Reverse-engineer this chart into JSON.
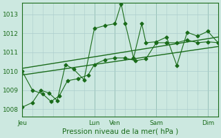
{
  "background_color": "#cce8e0",
  "grid_color": "#aacccc",
  "line_color": "#1a6b1a",
  "xlabel": "Pression niveau de la mer( hPa )",
  "yticks": [
    1008,
    1009,
    1010,
    1011,
    1012,
    1013
  ],
  "xtick_labels": [
    "Jeu",
    "Lun",
    "Ven",
    "Sam",
    "Dim"
  ],
  "xtick_positions": [
    0,
    3.5,
    4.5,
    6.5,
    9.0
  ],
  "xmin": 0,
  "xmax": 9.5,
  "ymin": 1007.6,
  "ymax": 1013.6,
  "trend1_x": [
    0,
    9.5
  ],
  "trend1_y": [
    1009.8,
    1011.3
  ],
  "trend2_x": [
    0,
    9.5
  ],
  "trend2_y": [
    1010.15,
    1011.8
  ],
  "series1_x": [
    0.0,
    0.5,
    1.0,
    1.4,
    1.8,
    2.2,
    2.7,
    3.2,
    3.5,
    4.0,
    4.5,
    5.0,
    5.5,
    6.0,
    6.5,
    7.0,
    7.5,
    8.0,
    8.5,
    9.0,
    9.5
  ],
  "series1_y": [
    1010.0,
    1009.0,
    1008.8,
    1008.4,
    1008.7,
    1009.5,
    1009.6,
    1009.8,
    1010.35,
    1010.6,
    1010.7,
    1010.7,
    1010.55,
    1010.65,
    1011.5,
    1011.5,
    1011.5,
    1011.65,
    1011.5,
    1011.55,
    1011.5
  ],
  "series2_x": [
    0.0,
    0.5,
    0.9,
    1.3,
    1.7,
    2.1,
    2.5,
    3.0,
    3.5,
    4.0,
    4.5,
    4.8,
    5.0,
    5.4,
    5.8,
    6.0,
    6.5,
    7.0,
    7.5,
    8.0,
    8.5,
    9.0,
    9.5
  ],
  "series2_y": [
    1008.1,
    1008.35,
    1009.0,
    1008.85,
    1008.45,
    1010.35,
    1010.1,
    1009.55,
    1012.25,
    1012.4,
    1012.5,
    1013.55,
    1012.5,
    1010.7,
    1012.5,
    1011.5,
    1011.55,
    1011.8,
    1010.3,
    1012.05,
    1011.85,
    1012.1,
    1011.5
  ]
}
